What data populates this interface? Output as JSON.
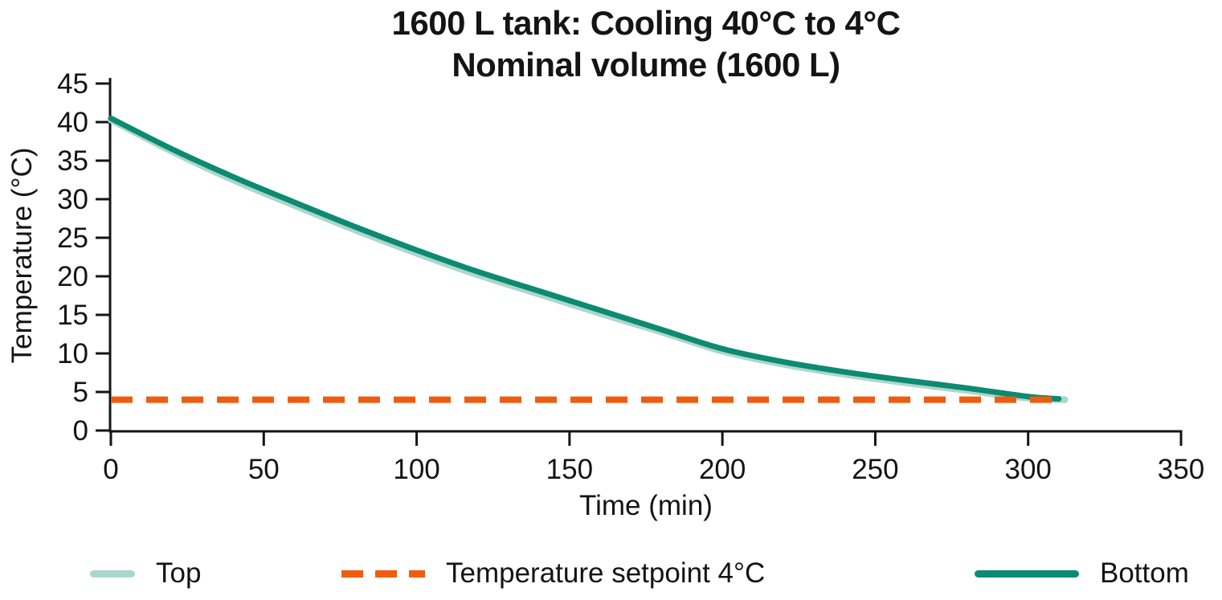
{
  "title": {
    "line1": "1600 L tank: Cooling 40°C to 4°C",
    "line2": "Nominal volume (1600 L)"
  },
  "axes": {
    "x_label": "Time (min)",
    "y_label": "Temperature (°C)"
  },
  "colors": {
    "text": "#141414",
    "axis": "#141414",
    "top_series": "#abd7cd",
    "bottom_series": "#0d8a71",
    "setpoint": "#f05c0e",
    "background": "#ffffff"
  },
  "legend": {
    "items": [
      {
        "label": "Top",
        "color": "#abd7cd",
        "style": "solid",
        "swatch_width": 56
      },
      {
        "label": "Temperature setpoint 4°C",
        "color": "#f05c0e",
        "style": "dashed",
        "swatch_width": 104
      },
      {
        "label": "Bottom",
        "color": "#0d8a71",
        "style": "solid",
        "swatch_width": 130
      }
    ]
  },
  "chart_data": {
    "type": "line",
    "title": "1600 L tank: Cooling 40°C to 4°C — Nominal volume (1600 L)",
    "xlabel": "Time (min)",
    "ylabel": "Temperature (°C)",
    "xlim": [
      0,
      350
    ],
    "ylim": [
      0,
      45
    ],
    "xticks": [
      0,
      50,
      100,
      150,
      200,
      250,
      300,
      350
    ],
    "yticks": [
      0,
      5,
      10,
      15,
      20,
      25,
      30,
      35,
      40,
      45
    ],
    "grid": false,
    "legend_position": "bottom",
    "series": [
      {
        "name": "Top",
        "color": "#abd7cd",
        "style": "solid",
        "line_width": 8.5,
        "x": [
          0,
          20,
          40,
          60,
          80,
          100,
          120,
          140,
          160,
          180,
          200,
          220,
          240,
          260,
          280,
          300,
          312
        ],
        "y": [
          40.3,
          36.2,
          32.5,
          29.2,
          26.0,
          23.0,
          20.2,
          17.7,
          15.2,
          12.8,
          10.3,
          8.6,
          7.3,
          6.2,
          5.2,
          4.2,
          4.0
        ]
      },
      {
        "name": "Bottom",
        "color": "#0d8a71",
        "style": "solid",
        "line_width": 7,
        "x": [
          0,
          20,
          40,
          60,
          80,
          100,
          120,
          140,
          160,
          180,
          200,
          220,
          240,
          260,
          280,
          300,
          310
        ],
        "y": [
          40.5,
          36.5,
          32.9,
          29.6,
          26.4,
          23.4,
          20.6,
          18.1,
          15.6,
          13.1,
          10.6,
          8.9,
          7.6,
          6.5,
          5.5,
          4.4,
          4.1
        ]
      },
      {
        "name": "Temperature setpoint 4°C",
        "color": "#f05c0e",
        "style": "dashed",
        "line_width": 8,
        "x": [
          0,
          312
        ],
        "y": [
          4,
          4
        ]
      }
    ]
  }
}
